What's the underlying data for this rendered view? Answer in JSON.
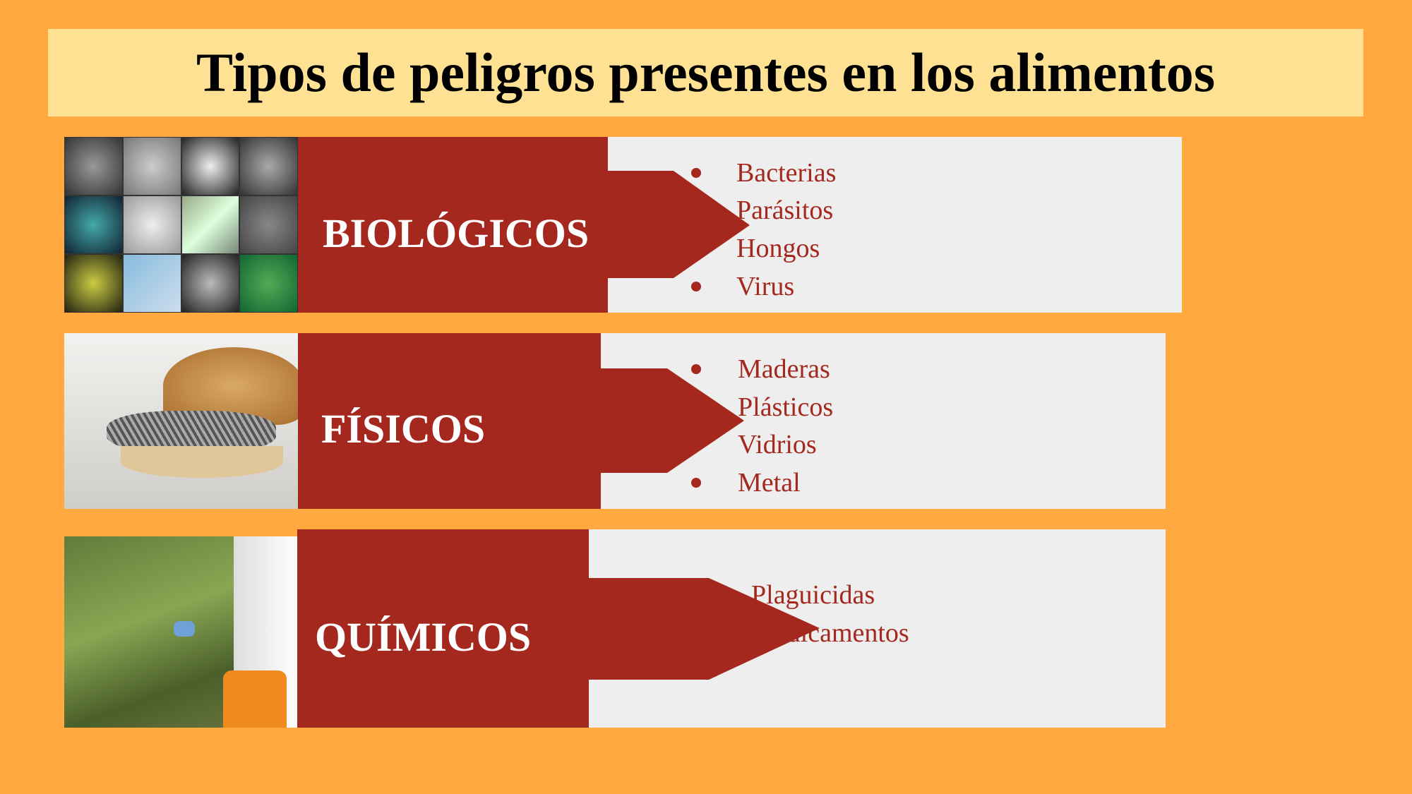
{
  "title": "Tipos de peligros presentes en los alimentos",
  "colors": {
    "background": "#FFA940",
    "title_band": "#FFE194",
    "accent": "#A5281E",
    "panel": "#EEEEEE"
  },
  "rows": [
    {
      "label": "BIOLÓGICOS",
      "image": "microorganisms-collage",
      "items": [
        "Bacterias",
        "Parásitos",
        "Hongos",
        "Virus"
      ]
    },
    {
      "label": "FÍSICOS",
      "image": "bun-with-nails",
      "items": [
        "Maderas",
        "Plásticos",
        "Vidrios",
        "Metal"
      ]
    },
    {
      "label": "QUÍMICOS",
      "image": "pesticide-spraying-crops",
      "items": [
        "Plaguicidas",
        "Medicamentos"
      ]
    }
  ]
}
